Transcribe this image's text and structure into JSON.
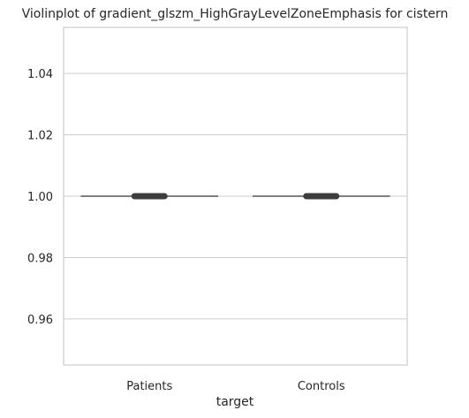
{
  "chart_data": {
    "type": "violin",
    "title": "Violinplot of gradient_glszm_HighGrayLevelZoneEmphasis for cistern",
    "xlabel": "target",
    "ylabel": "",
    "categories": [
      "Patients",
      "Controls"
    ],
    "values": [
      1.0,
      1.0
    ],
    "ylim": [
      0.945,
      1.055
    ],
    "yticks": [
      0.96,
      0.98,
      1.0,
      1.02,
      1.04
    ],
    "ytick_labels": [
      "0.96",
      "0.98",
      "1.00",
      "1.02",
      "1.04"
    ],
    "grid": "horizontal",
    "colors": {
      "grid": "#cccccc",
      "frame": "#cccccc",
      "median": "#555555",
      "box": "#3d3d3d"
    }
  }
}
